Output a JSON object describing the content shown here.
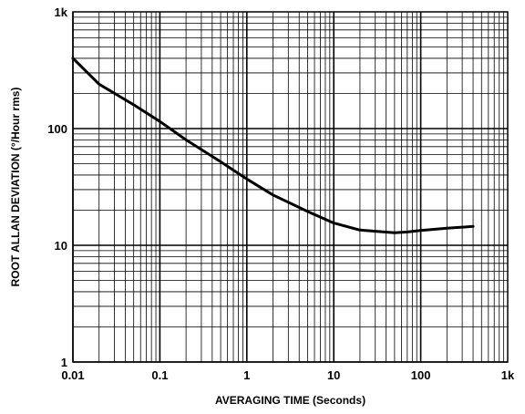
{
  "chart_data": {
    "type": "line",
    "title": "",
    "xlabel": "AVERAGING TIME (Seconds)",
    "ylabel": "ROOT ALLAN DEVIATION (°/Hour rms)",
    "xscale": "log",
    "yscale": "log",
    "xlim": [
      0.01,
      1000
    ],
    "ylim": [
      1,
      1000
    ],
    "grid": true,
    "legend": "none",
    "colors": {
      "line": "#000000",
      "grid": "#000000",
      "background": "#ffffff"
    },
    "x_ticks": [
      {
        "value": 0.01,
        "label": "0.01"
      },
      {
        "value": 0.1,
        "label": "0.1"
      },
      {
        "value": 1,
        "label": "1"
      },
      {
        "value": 10,
        "label": "10"
      },
      {
        "value": 100,
        "label": "100"
      },
      {
        "value": 1000,
        "label": "1k"
      }
    ],
    "y_ticks": [
      {
        "value": 1,
        "label": "1"
      },
      {
        "value": 10,
        "label": "10"
      },
      {
        "value": 100,
        "label": "100"
      },
      {
        "value": 1000,
        "label": "1k"
      }
    ],
    "series": [
      {
        "x": [
          0.01,
          0.02,
          0.05,
          0.1,
          0.2,
          0.5,
          1,
          2,
          5,
          10,
          20,
          50,
          70,
          100,
          200,
          400
        ],
        "y": [
          400,
          240,
          160,
          115,
          80,
          52,
          37,
          27,
          19.5,
          15.5,
          13.5,
          12.8,
          13,
          13.4,
          14,
          14.5
        ]
      }
    ]
  }
}
